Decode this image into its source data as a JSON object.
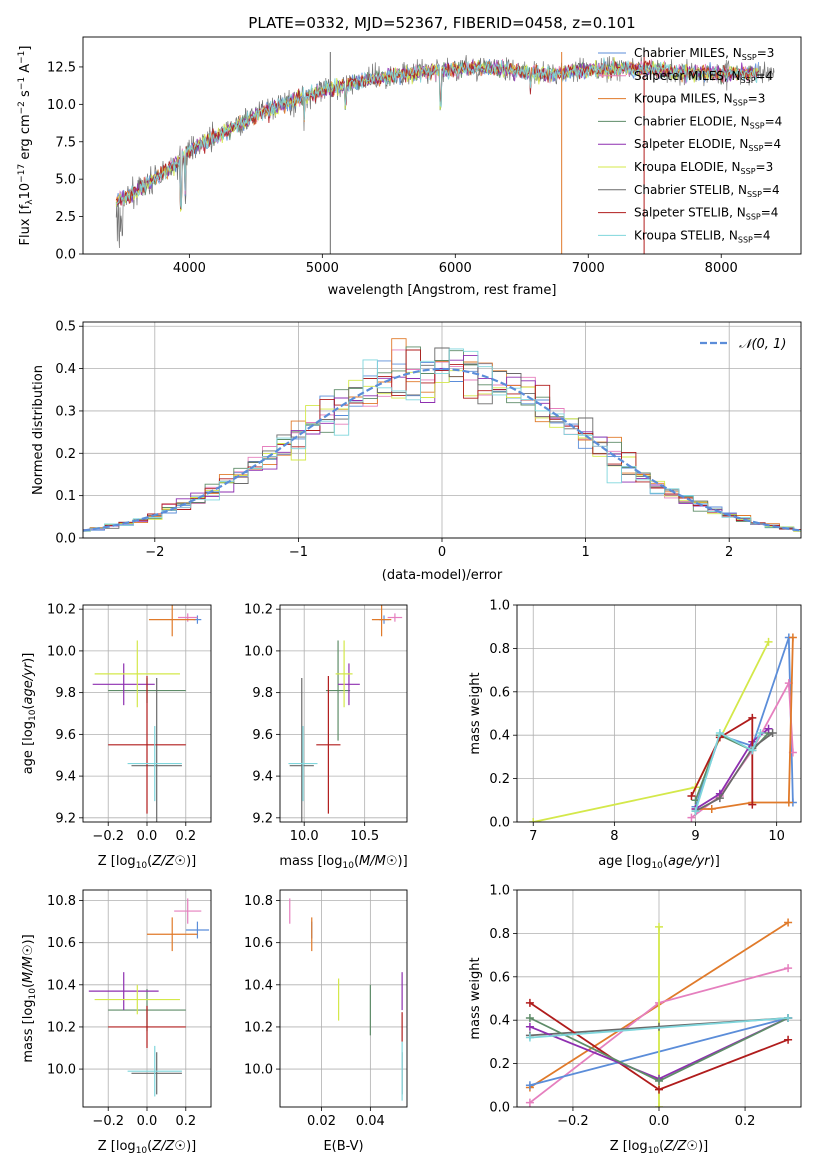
{
  "figure_title": "PLATE=0332, MJD=52367, FIBERID=0458, z=0.101",
  "colors": {
    "Chabrier MILES": "#5b8dd9",
    "Salpeter MILES": "#e57fbe",
    "Kroupa MILES": "#e07a2a",
    "Chabrier ELODIE": "#5e8c68",
    "Salpeter ELODIE": "#8e2fb0",
    "Kroupa ELODIE": "#d4e84a",
    "Chabrier STELIB": "#6a6a6a",
    "Salpeter STELIB": "#b01c1c",
    "Kroupa STELIB": "#7fd6dc",
    "normal_fit": "#5b8dd9",
    "grid": "#b0b0b0"
  },
  "chart_data": [
    {
      "id": "spectrum",
      "type": "line",
      "title": "PLATE=0332, MJD=52367, FIBERID=0458, z=0.101",
      "xlabel": "wavelength [Angstrom, rest frame]",
      "ylabel": "Flux [f",
      "ylabel_parts": [
        "Flux [f",
        "λ",
        "10",
        "−17",
        " erg cm",
        "−2",
        " s",
        "−1",
        " A",
        "−1",
        "]"
      ],
      "xlim": [
        3200,
        8600
      ],
      "ylim": [
        0,
        14.5
      ],
      "xticks": [
        4000,
        5000,
        6000,
        7000,
        8000
      ],
      "yticks": [
        0.0,
        2.5,
        5.0,
        7.5,
        10.0,
        12.5
      ],
      "ytick_labels": [
        "0.0",
        "2.5",
        "5.0",
        "7.5",
        "10.0",
        "12.5"
      ],
      "grid": false,
      "legend_position": "upper-right",
      "legend": [
        {
          "name": "Chabrier MILES",
          "nssp": "3"
        },
        {
          "name": "Salpeter MILES",
          "nssp": "4"
        },
        {
          "name": "Kroupa MILES",
          "nssp": "3"
        },
        {
          "name": "Chabrier ELODIE",
          "nssp": "4"
        },
        {
          "name": "Salpeter ELODIE",
          "nssp": "4"
        },
        {
          "name": "Kroupa ELODIE",
          "nssp": "3"
        },
        {
          "name": "Chabrier STELIB",
          "nssp": "4"
        },
        {
          "name": "Salpeter STELIB",
          "nssp": "4"
        },
        {
          "name": "Kroupa STELIB",
          "nssp": "4"
        }
      ],
      "data_x": [
        3450,
        3550,
        3700,
        3900,
        4000,
        4150,
        4300,
        4500,
        4700,
        4900,
        5100,
        5300,
        5500,
        5700,
        5900,
        6100,
        6300,
        6500,
        6700,
        6900,
        7100,
        7300,
        7500,
        7800
      ],
      "data_y": [
        3.6,
        3.9,
        4.8,
        6.0,
        7.0,
        7.6,
        8.3,
        9.3,
        10.0,
        10.6,
        11.1,
        11.6,
        11.9,
        12.1,
        12.3,
        12.4,
        12.4,
        12.2,
        12.0,
        12.2,
        12.4,
        12.4,
        12.3,
        12.1
      ],
      "vertical_lines": [
        {
          "x": 5060,
          "series": "Chabrier STELIB"
        },
        {
          "x": 6800,
          "series": "Kroupa MILES"
        },
        {
          "x": 7420,
          "series": "Salpeter STELIB"
        }
      ]
    },
    {
      "id": "residual_hist",
      "type": "step",
      "xlabel": "(data-model)/error",
      "ylabel": "Normed distribution",
      "xlim": [
        -2.5,
        2.5
      ],
      "ylim": [
        0,
        0.51
      ],
      "xticks": [
        -2,
        -1,
        0,
        1,
        2
      ],
      "xtick_labels": [
        "−2",
        "−1",
        "0",
        "1",
        "2"
      ],
      "yticks": [
        0.0,
        0.1,
        0.2,
        0.3,
        0.4,
        0.5
      ],
      "ytick_labels": [
        "0.0",
        "0.1",
        "0.2",
        "0.3",
        "0.4",
        "0.5"
      ],
      "grid": true,
      "legend_position": "upper-right",
      "legend": [
        {
          "name": "𝒩(0, 1)"
        }
      ],
      "bin_width": 0.1
    },
    {
      "id": "age_vs_Z",
      "type": "errorbar",
      "xlabel": "Z [log10(Z/Z☉)]",
      "ylabel": "age  [log10(age/yr)]",
      "xlim": [
        -0.33,
        0.33
      ],
      "ylim": [
        9.18,
        10.22
      ],
      "xticks": [
        -0.2,
        0.0,
        0.2
      ],
      "xtick_labels": [
        "−0.2",
        "0.0",
        "0.2"
      ],
      "yticks": [
        9.2,
        9.4,
        9.6,
        9.8,
        10.0,
        10.2
      ],
      "ytick_labels": [
        "9.2",
        "9.4",
        "9.6",
        "9.8",
        "10.0",
        "10.2"
      ],
      "grid": true,
      "points": [
        {
          "series": "Chabrier MILES",
          "x": 0.26,
          "y": 10.15,
          "xerr": 0.02,
          "yerr": 0.02
        },
        {
          "series": "Salpeter MILES",
          "x": 0.21,
          "y": 10.16,
          "xerr": 0.05,
          "yerr": 0.02
        },
        {
          "series": "Kroupa MILES",
          "x": 0.13,
          "y": 10.15,
          "xerr": 0.12,
          "yerr": 0.08
        },
        {
          "series": "Chabrier ELODIE",
          "x": 0.0,
          "y": 9.81,
          "xerr": 0.2,
          "yerr": 0.06
        },
        {
          "series": "Salpeter ELODIE",
          "x": -0.12,
          "y": 9.84,
          "xerr": 0.16,
          "yerr": 0.1
        },
        {
          "series": "Kroupa ELODIE",
          "x": -0.05,
          "y": 9.89,
          "xerr": 0.22,
          "yerr": 0.16
        },
        {
          "series": "Chabrier STELIB",
          "x": 0.05,
          "y": 9.45,
          "xerr": 0.13,
          "yerr": 0.42
        },
        {
          "series": "Salpeter STELIB",
          "x": 0.0,
          "y": 9.55,
          "xerr": 0.2,
          "yerr": 0.33
        },
        {
          "series": "Kroupa STELIB",
          "x": 0.04,
          "y": 9.46,
          "xerr": 0.14,
          "yerr": 0.18
        }
      ]
    },
    {
      "id": "age_vs_mass",
      "type": "errorbar",
      "xlabel": "mass [log10(M/M☉)]",
      "ylabel": "",
      "xlim": [
        9.8,
        10.85
      ],
      "ylim": [
        9.18,
        10.22
      ],
      "xticks": [
        10.0,
        10.5
      ],
      "xtick_labels": [
        "10.0",
        "10.5"
      ],
      "yticks": [
        9.2,
        9.4,
        9.6,
        9.8,
        10.0,
        10.2
      ],
      "ytick_labels": [
        "9.2",
        "9.4",
        "9.6",
        "9.8",
        "10.0",
        "10.2"
      ],
      "grid": true,
      "points": [
        {
          "series": "Chabrier MILES",
          "x": 10.66,
          "y": 10.15,
          "xerr": 0.04,
          "yerr": 0.02
        },
        {
          "series": "Salpeter MILES",
          "x": 10.75,
          "y": 10.16,
          "xerr": 0.06,
          "yerr": 0.02
        },
        {
          "series": "Kroupa MILES",
          "x": 10.64,
          "y": 10.15,
          "xerr": 0.08,
          "yerr": 0.08
        },
        {
          "series": "Chabrier ELODIE",
          "x": 10.28,
          "y": 9.81,
          "xerr": 0.1,
          "yerr": 0.24
        },
        {
          "series": "Salpeter ELODIE",
          "x": 10.37,
          "y": 9.84,
          "xerr": 0.09,
          "yerr": 0.1
        },
        {
          "series": "Kroupa ELODIE",
          "x": 10.33,
          "y": 9.89,
          "xerr": 0.07,
          "yerr": 0.16
        },
        {
          "series": "Chabrier STELIB",
          "x": 9.98,
          "y": 9.45,
          "xerr": 0.1,
          "yerr": 0.42
        },
        {
          "series": "Salpeter STELIB",
          "x": 10.2,
          "y": 9.55,
          "xerr": 0.1,
          "yerr": 0.33
        },
        {
          "series": "Kroupa STELIB",
          "x": 9.99,
          "y": 9.46,
          "xerr": 0.12,
          "yerr": 0.18
        }
      ]
    },
    {
      "id": "mass_weight_vs_age",
      "type": "line",
      "xlabel": "age  [log10(age/yr)]",
      "ylabel": "mass weight",
      "xlim": [
        6.8,
        10.3
      ],
      "ylim": [
        0,
        1
      ],
      "xticks": [
        7,
        8,
        9,
        10
      ],
      "xtick_labels": [
        "7",
        "8",
        "9",
        "10"
      ],
      "yticks": [
        0.0,
        0.2,
        0.4,
        0.6,
        0.8,
        1.0
      ],
      "ytick_labels": [
        "0.0",
        "0.2",
        "0.4",
        "0.6",
        "0.8",
        "1.0"
      ],
      "grid": true,
      "series": [
        {
          "name": "Kroupa ELODIE",
          "x": [
            7.0,
            9.0,
            9.9
          ],
          "y": [
            0.0,
            0.16,
            0.83
          ]
        },
        {
          "name": "Chabrier MILES",
          "x": [
            9.0,
            9.3,
            9.7,
            10.15,
            10.2
          ],
          "y": [
            0.07,
            0.4,
            0.35,
            0.85,
            0.09
          ]
        },
        {
          "name": "Salpeter MILES",
          "x": [
            8.95,
            9.3,
            9.7,
            10.15,
            10.2
          ],
          "y": [
            0.02,
            0.12,
            0.33,
            0.64,
            0.32
          ]
        },
        {
          "name": "Kroupa MILES",
          "x": [
            9.0,
            9.2,
            9.7,
            10.15,
            10.2
          ],
          "y": [
            0.06,
            0.06,
            0.09,
            0.09,
            0.85
          ]
        },
        {
          "name": "Chabrier ELODIE",
          "x": [
            9.0,
            9.3,
            9.7,
            9.9
          ],
          "y": [
            0.1,
            0.4,
            0.33,
            0.41
          ]
        },
        {
          "name": "Salpeter ELODIE",
          "x": [
            9.0,
            9.3,
            9.7,
            9.9
          ],
          "y": [
            0.06,
            0.13,
            0.37,
            0.43
          ]
        },
        {
          "name": "Chabrier STELIB",
          "x": [
            9.0,
            9.3,
            9.7,
            9.95
          ],
          "y": [
            0.05,
            0.11,
            0.34,
            0.41
          ]
        },
        {
          "name": "Salpeter STELIB",
          "x": [
            8.95,
            9.3,
            9.7,
            9.7
          ],
          "y": [
            0.12,
            0.39,
            0.48,
            0.08
          ]
        },
        {
          "name": "Kroupa STELIB",
          "x": [
            9.0,
            9.3,
            9.7,
            9.8
          ],
          "y": [
            0.05,
            0.41,
            0.33,
            0.41
          ]
        }
      ]
    },
    {
      "id": "mass_vs_Z",
      "type": "errorbar",
      "xlabel": "Z [log10(Z/Z☉)]",
      "ylabel": "mass [log10(M/M☉)]",
      "xlim": [
        -0.33,
        0.33
      ],
      "ylim": [
        9.82,
        10.85
      ],
      "xticks": [
        -0.2,
        0.0,
        0.2
      ],
      "xtick_labels": [
        "−0.2",
        "0.0",
        "0.2"
      ],
      "yticks": [
        10.0,
        10.2,
        10.4,
        10.6,
        10.8
      ],
      "ytick_labels": [
        "10.0",
        "10.2",
        "10.4",
        "10.6",
        "10.8"
      ],
      "grid": true,
      "points": [
        {
          "series": "Chabrier MILES",
          "x": 0.26,
          "y": 10.66,
          "xerr": 0.06,
          "yerr": 0.04
        },
        {
          "series": "Salpeter MILES",
          "x": 0.21,
          "y": 10.75,
          "xerr": 0.07,
          "yerr": 0.06
        },
        {
          "series": "Kroupa MILES",
          "x": 0.13,
          "y": 10.64,
          "xerr": 0.13,
          "yerr": 0.08
        },
        {
          "series": "Chabrier ELODIE",
          "x": 0.0,
          "y": 10.28,
          "xerr": 0.2,
          "yerr": 0.1
        },
        {
          "series": "Salpeter ELODIE",
          "x": -0.12,
          "y": 10.37,
          "xerr": 0.18,
          "yerr": 0.09
        },
        {
          "series": "Kroupa ELODIE",
          "x": -0.05,
          "y": 10.33,
          "xerr": 0.22,
          "yerr": 0.07
        },
        {
          "series": "Chabrier STELIB",
          "x": 0.05,
          "y": 9.98,
          "xerr": 0.13,
          "yerr": 0.1
        },
        {
          "series": "Salpeter STELIB",
          "x": 0.0,
          "y": 10.2,
          "xerr": 0.2,
          "yerr": 0.1
        },
        {
          "series": "Kroupa STELIB",
          "x": 0.04,
          "y": 9.99,
          "xerr": 0.14,
          "yerr": 0.12
        }
      ]
    },
    {
      "id": "mass_vs_ebv",
      "type": "errorbar",
      "xlabel": "E(B-V)",
      "ylabel": "",
      "xlim": [
        0.003,
        0.055
      ],
      "ylim": [
        9.82,
        10.85
      ],
      "xticks": [
        0.02,
        0.04
      ],
      "xtick_labels": [
        "0.02",
        "0.04"
      ],
      "yticks": [
        10.0,
        10.2,
        10.4,
        10.6,
        10.8
      ],
      "ytick_labels": [
        "10.0",
        "10.2",
        "10.4",
        "10.6",
        "10.8"
      ],
      "grid": true,
      "points": [
        {
          "series": "Salpeter MILES",
          "x": 0.007,
          "y": 10.75,
          "xerr": 0,
          "yerr": 0.06
        },
        {
          "series": "Chabrier MILES",
          "x": 0.016,
          "y": 10.66,
          "xerr": 0,
          "yerr": 0.04
        },
        {
          "series": "Kroupa MILES",
          "x": 0.016,
          "y": 10.64,
          "xerr": 0,
          "yerr": 0.08
        },
        {
          "series": "Kroupa ELODIE",
          "x": 0.027,
          "y": 10.33,
          "xerr": 0,
          "yerr": 0.1
        },
        {
          "series": "Chabrier ELODIE",
          "x": 0.04,
          "y": 10.28,
          "xerr": 0,
          "yerr": 0.12
        },
        {
          "series": "Salpeter ELODIE",
          "x": 0.053,
          "y": 10.37,
          "xerr": 0,
          "yerr": 0.09
        },
        {
          "series": "Salpeter STELIB",
          "x": 0.053,
          "y": 10.2,
          "xerr": 0,
          "yerr": 0.07
        },
        {
          "series": "Chabrier STELIB",
          "x": 0.053,
          "y": 9.98,
          "xerr": 0,
          "yerr": 0.1
        },
        {
          "series": "Kroupa STELIB",
          "x": 0.053,
          "y": 9.99,
          "xerr": 0,
          "yerr": 0.14
        }
      ]
    },
    {
      "id": "mass_weight_vs_Z",
      "type": "line",
      "xlabel": "Z [log10(Z/Z☉)]",
      "ylabel": "mass weight",
      "xlim": [
        -0.33,
        0.33
      ],
      "ylim": [
        0,
        1
      ],
      "xticks": [
        -0.2,
        0.0,
        0.2
      ],
      "xtick_labels": [
        "−0.2",
        "0.0",
        "0.2"
      ],
      "yticks": [
        0.0,
        0.2,
        0.4,
        0.6,
        0.8,
        1.0
      ],
      "ytick_labels": [
        "0.0",
        "0.2",
        "0.4",
        "0.6",
        "0.8",
        "1.0"
      ],
      "grid": true,
      "series": [
        {
          "name": "Kroupa MILES",
          "x": [
            -0.3,
            0.3
          ],
          "y": [
            0.09,
            0.85
          ]
        },
        {
          "name": "Salpeter MILES",
          "x": [
            -0.3,
            0.0,
            0.3
          ],
          "y": [
            0.02,
            0.48,
            0.64
          ]
        },
        {
          "name": "Chabrier MILES",
          "x": [
            -0.3,
            0.3
          ],
          "y": [
            0.1,
            0.41
          ]
        },
        {
          "name": "Kroupa ELODIE",
          "x": [
            0.0,
            0.0
          ],
          "y": [
            0.0,
            0.83
          ]
        },
        {
          "name": "Chabrier STELIB",
          "x": [
            -0.3,
            0.0,
            0.3
          ],
          "y": [
            0.33,
            0.37,
            0.41
          ]
        },
        {
          "name": "Salpeter STELIB",
          "x": [
            -0.3,
            0.0,
            0.3
          ],
          "y": [
            0.48,
            0.08,
            0.31
          ]
        },
        {
          "name": "Salpeter ELODIE",
          "x": [
            -0.3,
            0.0,
            0.3
          ],
          "y": [
            0.37,
            0.13,
            0.41
          ]
        },
        {
          "name": "Chabrier ELODIE",
          "x": [
            -0.3,
            0.0,
            0.3
          ],
          "y": [
            0.41,
            0.12,
            0.41
          ]
        },
        {
          "name": "Kroupa STELIB",
          "x": [
            -0.3,
            0.3
          ],
          "y": [
            0.32,
            0.41
          ]
        }
      ]
    }
  ]
}
